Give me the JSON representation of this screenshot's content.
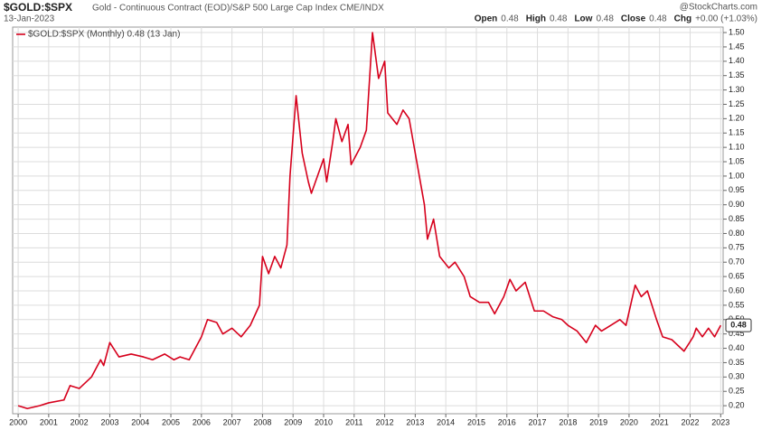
{
  "chart_data": {
    "type": "line",
    "title": "$GOLD:$SPX",
    "subtitle": "Gold - Continuous Contract (EOD)/S&P 500 Large Cap Index CME/INDX",
    "date": "13-Jan-2023",
    "source": "@StockCharts.com",
    "quote": [
      {
        "label": "Open",
        "value": "0.48"
      },
      {
        "label": "High",
        "value": "0.48"
      },
      {
        "label": "Low",
        "value": "0.48"
      },
      {
        "label": "Close",
        "value": "0.48"
      },
      {
        "label": "Chg",
        "value": "+0.00 (+1.03%)"
      }
    ],
    "x": [
      2000.0,
      2000.3,
      2000.7,
      2001.0,
      2001.5,
      2001.7,
      2002.0,
      2002.4,
      2002.7,
      2002.8,
      2003.0,
      2003.3,
      2003.7,
      2004.1,
      2004.4,
      2004.8,
      2005.1,
      2005.3,
      2005.6,
      2006.0,
      2006.2,
      2006.5,
      2006.7,
      2007.0,
      2007.3,
      2007.6,
      2007.9,
      2008.0,
      2008.2,
      2008.4,
      2008.6,
      2008.8,
      2008.9,
      2009.1,
      2009.3,
      2009.5,
      2009.6,
      2009.8,
      2010.0,
      2010.1,
      2010.3,
      2010.4,
      2010.6,
      2010.8,
      2010.9,
      2011.2,
      2011.4,
      2011.6,
      2011.8,
      2012.0,
      2012.1,
      2012.4,
      2012.6,
      2012.8,
      2013.1,
      2013.3,
      2013.4,
      2013.6,
      2013.8,
      2014.1,
      2014.3,
      2014.6,
      2014.8,
      2015.1,
      2015.4,
      2015.6,
      2015.9,
      2016.1,
      2016.3,
      2016.6,
      2016.9,
      2017.2,
      2017.5,
      2017.8,
      2018.0,
      2018.3,
      2018.6,
      2018.9,
      2019.1,
      2019.4,
      2019.7,
      2019.9,
      2020.2,
      2020.4,
      2020.6,
      2020.9,
      2021.1,
      2021.4,
      2021.6,
      2021.8,
      2022.1,
      2022.2,
      2022.4,
      2022.6,
      2022.8,
      2023.0
    ],
    "series": [
      {
        "name": "$GOLD:$SPX (Monthly) 0.48 (13 Jan)",
        "color": "#d6001c",
        "values": [
          0.2,
          0.19,
          0.2,
          0.21,
          0.22,
          0.27,
          0.26,
          0.3,
          0.36,
          0.34,
          0.42,
          0.37,
          0.38,
          0.37,
          0.36,
          0.38,
          0.36,
          0.37,
          0.36,
          0.44,
          0.5,
          0.49,
          0.45,
          0.47,
          0.44,
          0.48,
          0.55,
          0.72,
          0.66,
          0.72,
          0.68,
          0.76,
          1.0,
          1.28,
          1.08,
          0.98,
          0.94,
          1.0,
          1.06,
          0.98,
          1.12,
          1.2,
          1.12,
          1.18,
          1.04,
          1.1,
          1.16,
          1.5,
          1.34,
          1.4,
          1.22,
          1.18,
          1.23,
          1.2,
          1.02,
          0.9,
          0.78,
          0.85,
          0.72,
          0.68,
          0.7,
          0.65,
          0.58,
          0.56,
          0.56,
          0.52,
          0.58,
          0.64,
          0.6,
          0.63,
          0.53,
          0.53,
          0.51,
          0.5,
          0.48,
          0.46,
          0.42,
          0.48,
          0.46,
          0.48,
          0.5,
          0.48,
          0.62,
          0.58,
          0.6,
          0.5,
          0.44,
          0.43,
          0.41,
          0.39,
          0.44,
          0.47,
          0.44,
          0.47,
          0.44,
          0.48
        ]
      }
    ],
    "xlim": [
      1999.82,
      2023.08
    ],
    "xticks": [
      2000,
      2001,
      2002,
      2003,
      2004,
      2005,
      2006,
      2007,
      2008,
      2009,
      2010,
      2011,
      2012,
      2013,
      2014,
      2015,
      2016,
      2017,
      2018,
      2019,
      2020,
      2021,
      2022,
      2023
    ],
    "ylim": [
      0.172,
      1.519
    ],
    "yticks": [
      {
        "value": 0.2,
        "label": "0.20"
      },
      {
        "value": 0.25,
        "label": "0.25"
      },
      {
        "value": 0.3,
        "label": "0.30"
      },
      {
        "value": 0.35,
        "label": "0.35"
      },
      {
        "value": 0.4,
        "label": "0.40"
      },
      {
        "value": 0.45,
        "label": "0.45"
      },
      {
        "value": 0.5,
        "label": "0.50"
      },
      {
        "value": 0.55,
        "label": "0.55"
      },
      {
        "value": 0.6,
        "label": "0.60"
      },
      {
        "value": 0.65,
        "label": "0.65"
      },
      {
        "value": 0.7,
        "label": "0.70"
      },
      {
        "value": 0.75,
        "label": "0.75"
      },
      {
        "value": 0.8,
        "label": "0.80"
      },
      {
        "value": 0.85,
        "label": "0.85"
      },
      {
        "value": 0.9,
        "label": "0.90"
      },
      {
        "value": 0.95,
        "label": "0.95"
      },
      {
        "value": 1.0,
        "label": "1.00"
      },
      {
        "value": 1.05,
        "label": "1.05"
      },
      {
        "value": 1.1,
        "label": "1.10"
      },
      {
        "value": 1.15,
        "label": "1.15"
      },
      {
        "value": 1.2,
        "label": "1.20"
      },
      {
        "value": 1.25,
        "label": "1.25"
      },
      {
        "value": 1.3,
        "label": "1.30"
      },
      {
        "value": 1.35,
        "label": "1.35"
      },
      {
        "value": 1.4,
        "label": "1.40"
      },
      {
        "value": 1.45,
        "label": "1.45"
      },
      {
        "value": 1.5,
        "label": "1.50"
      }
    ],
    "grid": true
  }
}
